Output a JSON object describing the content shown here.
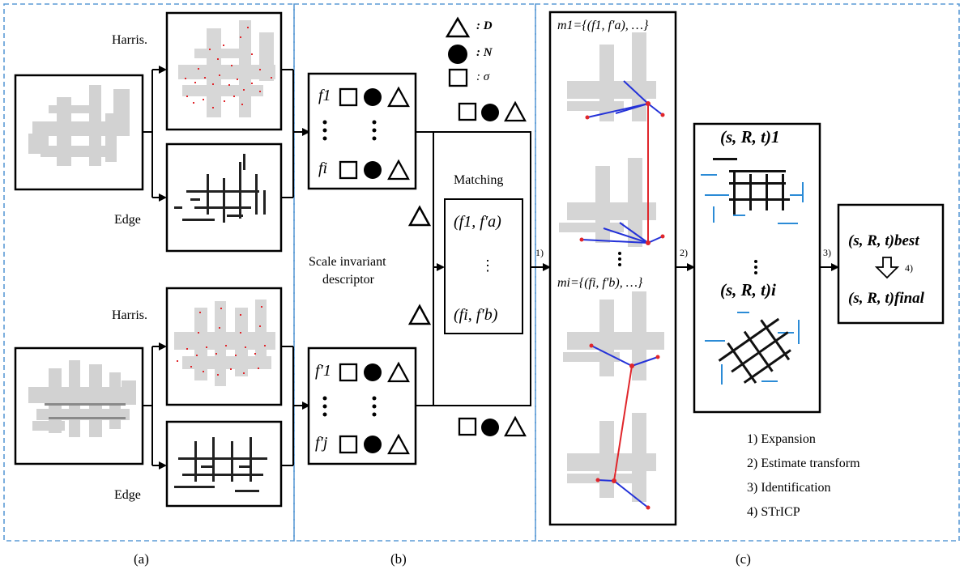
{
  "legend": {
    "d_label": ": D",
    "n_label": ": N",
    "sigma_label": ": σ"
  },
  "panel_a": {
    "top_harris_label": "Harris.",
    "top_edge_label": "Edge",
    "bottom_harris_label": "Harris.",
    "bottom_edge_label": "Edge",
    "caption": "(a)"
  },
  "panel_b": {
    "descriptor_label_line1": "Scale invariant",
    "descriptor_label_line2": "descriptor",
    "top_row1": "f1",
    "top_row2": "fi",
    "bottom_row1": "f′1",
    "bottom_row2": "f′j",
    "matching_label": "Matching",
    "match_row1": "(f1, f′a)",
    "match_row2": "⋮",
    "match_row3": "(fi, f′b)",
    "caption": "(b)"
  },
  "panel_c": {
    "m1_label": "m1={(f1, f′a), …}",
    "mi_label": "mi={(fi, f′b), …}",
    "t1_label": "(s, R, t)1",
    "ti_label": "(s, R, t)i",
    "best_label": "(s, R, t)best",
    "final_label": "(s, R, t)final",
    "step4_arrow_label": "4)",
    "steps": [
      "1) Expansion",
      "2) Estimate transform",
      "3) Identification",
      "4) STrICP"
    ],
    "caption": "(c)"
  },
  "arrow_labels": {
    "step1": "1)",
    "step2": "2)",
    "step3": "3)"
  },
  "colors": {
    "dashed_border": "#5b9bd5",
    "feature": "#e0262b",
    "match_line_red": "#e0262b",
    "match_line_blue": "#2432d8",
    "map_gray": "#cfcfcf",
    "scan_blue": "#2b8bd6"
  }
}
